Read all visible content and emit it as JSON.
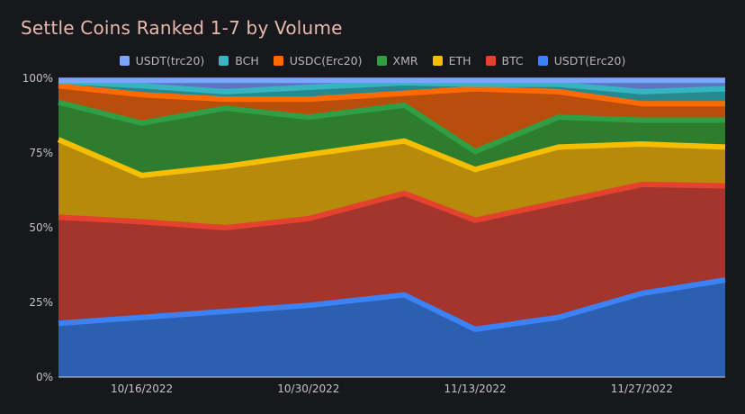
{
  "chart_data": {
    "type": "area",
    "stacked": true,
    "normalized": true,
    "title": "Settle Coins Ranked 1-7 by Volume",
    "xlabel": "",
    "ylabel": "",
    "ylim": [
      0,
      100
    ],
    "y_ticks": [
      "0%",
      "25%",
      "50%",
      "75%",
      "100%"
    ],
    "x_tick_labels": [
      "10/16/2022",
      "10/30/2022",
      "11/13/2022",
      "11/27/2022"
    ],
    "x_tick_index": [
      1,
      3,
      5,
      7
    ],
    "x": [
      "10/9/2022",
      "10/16/2022",
      "10/23/2022",
      "10/30/2022",
      "11/6/2022",
      "11/13/2022",
      "11/20/2022",
      "11/27/2022",
      "12/4/2022"
    ],
    "x_positions": [
      0,
      1,
      2,
      3,
      4.15,
      5,
      6,
      7,
      8
    ],
    "series": [
      {
        "name": "USDT(Erc20)",
        "color": "#3b82f6",
        "fill": "#2d5fb0",
        "values": [
          18,
          20,
          22,
          24,
          27.5,
          16,
          20,
          28,
          32.5
        ]
      },
      {
        "name": "BTC",
        "color": "#e4412f",
        "fill": "#a3352d",
        "values": [
          35.5,
          32,
          28,
          29,
          34,
          36.5,
          38.5,
          36.5,
          31.5
        ]
      },
      {
        "name": "ETH",
        "color": "#f6be00",
        "fill": "#b68a0b",
        "values": [
          26,
          15.5,
          20.5,
          21.5,
          17.5,
          17,
          18.5,
          13.5,
          13
        ]
      },
      {
        "name": "XMR",
        "color": "#2f9e44",
        "fill": "#2e7d2f",
        "values": [
          12.5,
          17.5,
          19.5,
          12.5,
          12,
          6,
          10,
          8,
          9
        ]
      },
      {
        "name": "USDC(Erc20)",
        "color": "#ff6a00",
        "fill": "#b84e0b",
        "values": [
          5.5,
          9.5,
          3,
          6,
          4,
          21,
          8.5,
          5.5,
          5.5
        ]
      },
      {
        "name": "BCH",
        "color": "#36b4c0",
        "fill": "#27898f",
        "values": [
          1.5,
          3,
          2.5,
          4,
          3.5,
          1.5,
          2.5,
          4,
          5
        ]
      },
      {
        "name": "USDT(trc20)",
        "color": "#7aa6ff",
        "fill": "#5c74c2",
        "values": [
          1,
          2.5,
          4.5,
          3,
          1.5,
          2,
          2,
          4.5,
          3.5
        ]
      }
    ],
    "legend_position": "top-center"
  }
}
